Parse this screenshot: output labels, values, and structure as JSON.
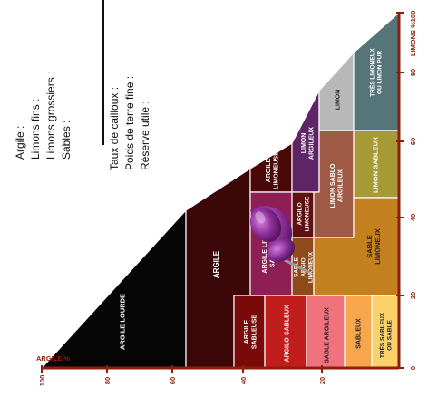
{
  "form": {
    "argile": "Argile  :",
    "limons_fins": "Limons fins  :",
    "limons_grossiers": "Limons grossiers  :",
    "sables": "Sables  :",
    "taux_cailloux": "Taux de cailloux :",
    "poids_terre_fine": "Poids de terre fine :",
    "reserve_utile": "Réserve utile :"
  },
  "axes": {
    "argile_title": "ARGILE %",
    "limons_title": "LIMONS %",
    "argile_ticks": [
      "100",
      "80",
      "60",
      "40",
      "20"
    ],
    "limons_ticks": [
      "0",
      "20",
      "40",
      "60",
      "80",
      "100"
    ]
  },
  "zones": [
    {
      "lines": [
        "ARGILE LOURDE"
      ],
      "color": "#050505",
      "text": "#ffffff"
    },
    {
      "lines": [
        "ARGILE"
      ],
      "color": "#3c0707",
      "text": "#ffffff"
    },
    {
      "lines": [
        "ARGILE",
        "LIMONEUSE"
      ],
      "color": "#4a0808",
      "text": "#ffffff"
    },
    {
      "lines": [
        "LIMON",
        "ARGILEUX"
      ],
      "color": "#5e2466",
      "text": "#ffffff"
    },
    {
      "lines": [
        "ARGILE",
        "SABLEUSE"
      ],
      "color": "#7a0a0a",
      "text": "#ffffff"
    },
    {
      "lines": [
        "ARGILE LIMON",
        "SABLEUSE"
      ],
      "color": "#8e1f54",
      "text": "#ffffff"
    },
    {
      "lines": [
        "ARGILO",
        "LIMONEUSE"
      ],
      "color": "#5f1010",
      "text": "#ffffff"
    },
    {
      "lines": [
        "LIMON SABLO",
        "ARGILEUX"
      ],
      "color": "#9e5a45",
      "text": "#ffffff"
    },
    {
      "lines": [
        "LIMON"
      ],
      "color": "#b8b8b8",
      "text": "#222222"
    },
    {
      "lines": [
        "TRÈS LIMONEUX",
        "OU LIMON PUR"
      ],
      "color": "#56757a",
      "text": "#ffffff"
    },
    {
      "lines": [
        "ARGILO-SABLEUX"
      ],
      "color": "#c21d1d",
      "text": "#ffffff"
    },
    {
      "lines": [
        "SABLE",
        "ARGIO",
        "LIMONEUX"
      ],
      "color": "#8e4a1a",
      "text": "#ffffff"
    },
    {
      "lines": [
        "LIMON SABLEUX"
      ],
      "color": "#a59a34",
      "text": "#ffffff"
    },
    {
      "lines": [
        "SABLE ARGILEUX"
      ],
      "color": "#f0727d",
      "text": "#222222"
    },
    {
      "lines": [
        "SABLE",
        "LIMONEUX"
      ],
      "color": "#c4801f",
      "text": "#222222"
    },
    {
      "lines": [
        "SABLEUX"
      ],
      "color": "#f7a64b",
      "text": "#222222"
    },
    {
      "lines": [
        "TRÈS SABLEUX",
        "OU SABLE"
      ],
      "color": "#fbd26a",
      "text": "#222222"
    }
  ],
  "colors": {
    "axis": "#8a1f0a",
    "pin": "#8a2d96",
    "border": "#ffffff"
  },
  "icons": {
    "pin": "push-pin-icon"
  }
}
